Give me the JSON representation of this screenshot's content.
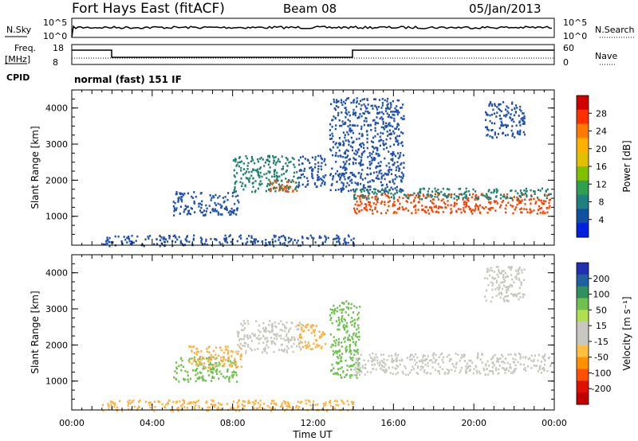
{
  "header": {
    "station": "Fort Hays East (fitACF)",
    "beam": "Beam 08",
    "date": "05/Jan/2013"
  },
  "top_panels": {
    "nsky_label": "N.Sky",
    "nsky_ticks": [
      "10^5",
      "10^0"
    ],
    "nsearch_label": "N.Search",
    "nsearch_ticks": [
      "10^5",
      "10^0"
    ],
    "freq_label": "Freq.",
    "freq_unit": "[MHz]",
    "freq_ticks": [
      "18",
      "8"
    ],
    "nave_label": "Nave",
    "nave_ticks": [
      "60",
      "0"
    ],
    "cpid_label": "CPID",
    "cpid_text": "normal (fast) 151 IF"
  },
  "chart_data": [
    {
      "type": "heatmap",
      "name": "power",
      "ylabel": "Slant Range [km]",
      "ylim": [
        200,
        4500
      ],
      "y_ticks": [
        1000,
        2000,
        3000,
        4000
      ],
      "xlim": [
        0,
        24
      ],
      "colorbar": {
        "label": "Power [dB]",
        "ticks": [
          "28",
          "24",
          "20",
          "16",
          "12",
          "8",
          "4"
        ],
        "colors": [
          "#d00000",
          "#ff3000",
          "#ff7a00",
          "#ffb000",
          "#e0c000",
          "#7fc000",
          "#30a050",
          "#208080",
          "#1050a0",
          "#0020e0"
        ]
      },
      "echo_regions": [
        {
          "t0": 5.0,
          "t1": 8.3,
          "r0": 1050,
          "r1": 1700,
          "color": "#2050b0"
        },
        {
          "t0": 8.0,
          "t1": 11.2,
          "r0": 1700,
          "r1": 2700,
          "color": "#208070"
        },
        {
          "t0": 9.8,
          "t1": 11.2,
          "r0": 1700,
          "r1": 2000,
          "color": "#ff5000"
        },
        {
          "t0": 11.2,
          "t1": 12.6,
          "r0": 1800,
          "r1": 2700,
          "color": "#2050b0"
        },
        {
          "t0": 12.8,
          "t1": 16.5,
          "r0": 1700,
          "r1": 4300,
          "color": "#2050b0"
        },
        {
          "t0": 14.0,
          "t1": 23.8,
          "r0": 1100,
          "r1": 1650,
          "color": "#ff4000"
        },
        {
          "t0": 14.0,
          "t1": 23.8,
          "r0": 1500,
          "r1": 1800,
          "color": "#208070"
        },
        {
          "t0": 20.5,
          "t1": 22.5,
          "r0": 3200,
          "r1": 4200,
          "color": "#2050b0"
        },
        {
          "t0": 1.5,
          "t1": 14.0,
          "r0": 200,
          "r1": 500,
          "color": "#2050b0"
        }
      ]
    },
    {
      "type": "heatmap",
      "name": "velocity",
      "ylabel": "Slant Range [km]",
      "ylim": [
        200,
        4500
      ],
      "y_ticks": [
        1000,
        2000,
        3000,
        4000
      ],
      "xlim": [
        0,
        24
      ],
      "xlabel": "Time UT",
      "x_ticks": [
        "00:00",
        "04:00",
        "08:00",
        "12:00",
        "16:00",
        "20:00",
        "00:00"
      ],
      "colorbar": {
        "label": "Velocity [m s⁻¹]",
        "ticks": [
          "200",
          "100",
          "50",
          "15",
          "-15",
          "-50",
          "-100",
          "-200"
        ],
        "colors": [
          "#2030b0",
          "#2060a0",
          "#309060",
          "#70c050",
          "#b0e050",
          "#c8c8c0",
          "#c8c8c0",
          "#ffc040",
          "#ff9000",
          "#ff5000",
          "#e01000",
          "#c00000"
        ]
      },
      "echo_regions": [
        {
          "t0": 5.0,
          "t1": 8.2,
          "r0": 1000,
          "r1": 1700,
          "color": "#70c050"
        },
        {
          "t0": 5.8,
          "t1": 8.4,
          "r0": 1400,
          "r1": 2000,
          "color": "#ffb040"
        },
        {
          "t0": 8.2,
          "t1": 11.4,
          "r0": 1800,
          "r1": 2700,
          "color": "#c8c8c0"
        },
        {
          "t0": 11.2,
          "t1": 12.6,
          "r0": 1900,
          "r1": 2600,
          "color": "#ffb040"
        },
        {
          "t0": 12.8,
          "t1": 14.3,
          "r0": 1100,
          "r1": 3300,
          "color": "#70c050"
        },
        {
          "t0": 14.0,
          "t1": 23.8,
          "r0": 1200,
          "r1": 1800,
          "color": "#c8c8c0"
        },
        {
          "t0": 20.5,
          "t1": 22.5,
          "r0": 3200,
          "r1": 4200,
          "color": "#c8c8c0"
        },
        {
          "t0": 1.5,
          "t1": 14.0,
          "r0": 200,
          "r1": 500,
          "color": "#ffb040"
        }
      ]
    }
  ]
}
